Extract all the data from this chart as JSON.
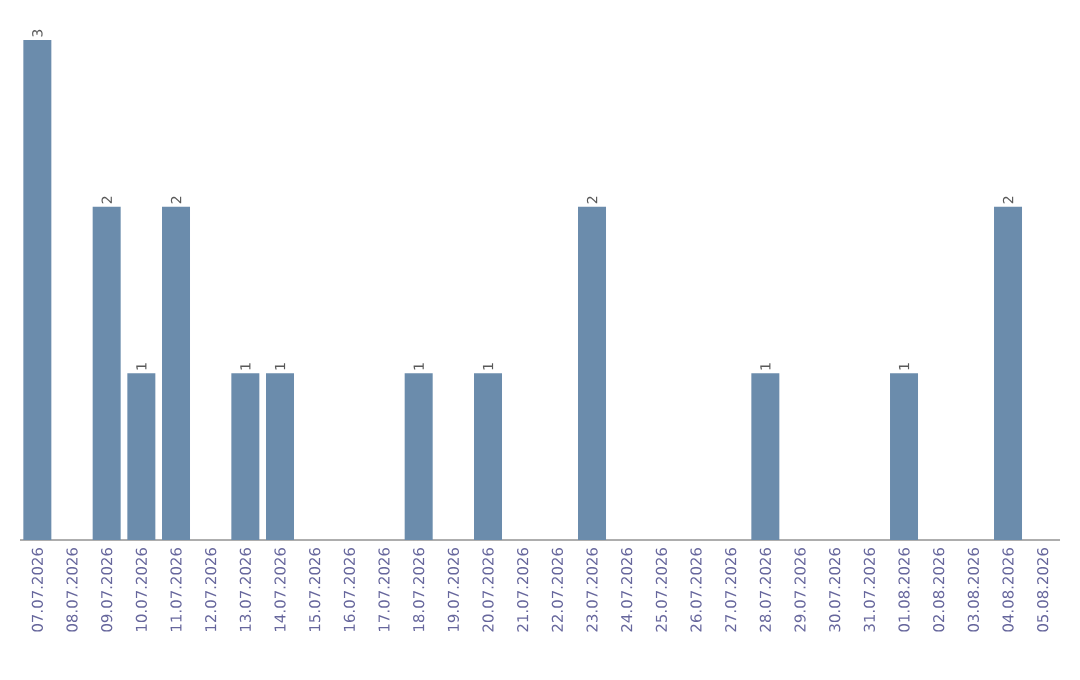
{
  "chart_data": {
    "type": "bar",
    "categories": [
      "07.07.2026",
      "08.07.2026",
      "09.07.2026",
      "10.07.2026",
      "11.07.2026",
      "12.07.2026",
      "13.07.2026",
      "14.07.2026",
      "15.07.2026",
      "16.07.2026",
      "17.07.2026",
      "18.07.2026",
      "19.07.2026",
      "20.07.2026",
      "21.07.2026",
      "22.07.2026",
      "23.07.2026",
      "24.07.2026",
      "25.07.2026",
      "26.07.2026",
      "27.07.2026",
      "28.07.2026",
      "29.07.2026",
      "30.07.2026",
      "31.07.2026",
      "01.08.2026",
      "02.08.2026",
      "03.08.2026",
      "04.08.2026",
      "05.08.2026"
    ],
    "values": [
      3,
      0,
      2,
      1,
      2,
      0,
      1,
      1,
      0,
      0,
      0,
      1,
      0,
      1,
      0,
      0,
      2,
      0,
      0,
      0,
      0,
      1,
      0,
      0,
      0,
      1,
      0,
      0,
      2,
      0
    ],
    "value_labels": [
      "3",
      null,
      "2",
      "1",
      "2",
      null,
      "1",
      "1",
      null,
      null,
      null,
      "1",
      null,
      "1",
      null,
      null,
      "2",
      null,
      null,
      null,
      null,
      "1",
      null,
      null,
      null,
      "1",
      null,
      null,
      "2",
      null
    ],
    "color": "#6b8cac",
    "ylim": [
      0,
      3
    ],
    "tick_labels": "x",
    "grid": false
  }
}
